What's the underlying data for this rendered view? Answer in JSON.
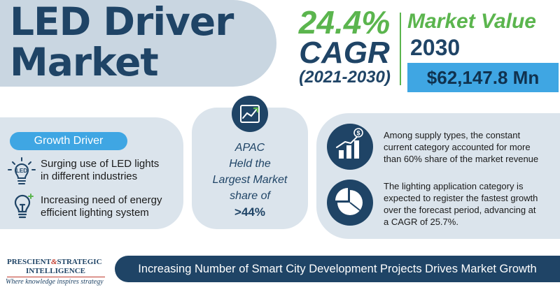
{
  "title": {
    "line1": "LED Driver",
    "line2": "Market"
  },
  "cagr": {
    "value": "24.4%",
    "label": "CAGR",
    "period": "(2021-2030)"
  },
  "market_value": {
    "title": "Market Value",
    "year": "2030",
    "value": "$62,147.8 Mn"
  },
  "growth_driver": {
    "label": "Growth Driver",
    "items": [
      {
        "icon": "led-bulb-icon",
        "text_line1": "Surging use of LED lights",
        "text_line2": "in different industries"
      },
      {
        "icon": "energy-bulb-icon",
        "text_line1": "Increasing need of energy",
        "text_line2": "efficient lighting system"
      }
    ]
  },
  "region": {
    "icon": "trend-chart-icon",
    "line1": "APAC",
    "line2": "Held the",
    "line3": "Largest Market",
    "line4": "share of",
    "share": ">44%"
  },
  "insights": [
    {
      "icon": "money-bar-chart-icon",
      "line1": "Among supply types, the constant",
      "line2": "current category accounted for more",
      "line3": "than 60% share of the market revenue"
    },
    {
      "icon": "pie-chart-icon",
      "line1": "The lighting application category is",
      "line2": "expected to register the fastest growth",
      "line3": "over the forecast period, advancing at",
      "line4": "a CAGR of 25.7%."
    }
  ],
  "footer": {
    "logo_part1": "PRESCIENT",
    "logo_amp": "&",
    "logo_part2": "STRATEGIC",
    "logo_line2": "INTELLIGENCE",
    "tagline": "Where knowledge inspires strategy",
    "banner": "Increasing Number of Smart City Development Projects Drives Market Growth"
  },
  "colors": {
    "navy": "#1f4466",
    "green": "#5bb54e",
    "blue": "#3fa6e3",
    "panel": "#dbe4ec",
    "banner": "#c9d6e1"
  }
}
